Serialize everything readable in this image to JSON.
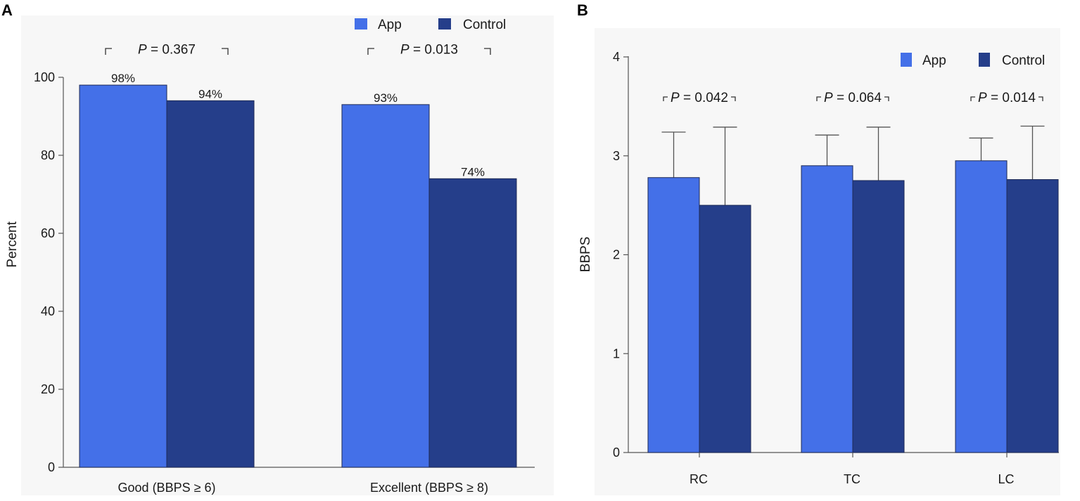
{
  "colors": {
    "app": "#4470e8",
    "control": "#253e8a",
    "panel_bg": "#f7f7f7",
    "axis": "#555555"
  },
  "chart_data": [
    {
      "panel": "A",
      "type": "bar",
      "ylabel": "Percent",
      "xlabel": "",
      "ylim": [
        0,
        100
      ],
      "yticks": [
        "0",
        "20",
        "40",
        "60",
        "80",
        "100"
      ],
      "categories": [
        "Good (BBPS ≥ 6)",
        "Excellent (BBPS ≥ 8)"
      ],
      "series": [
        {
          "name": "App",
          "values": [
            98,
            93
          ],
          "labels": [
            "98%",
            "93%"
          ]
        },
        {
          "name": "Control",
          "values": [
            94,
            74
          ],
          "labels": [
            "94%",
            "74%"
          ]
        }
      ],
      "p_prefix": "P",
      "p_values": [
        "= 0.367",
        "= 0.013"
      ],
      "legend": "top-right"
    },
    {
      "panel": "B",
      "type": "bar",
      "ylabel": "BBPS",
      "xlabel": "",
      "ylim": [
        0,
        4
      ],
      "yticks": [
        "0",
        "1",
        "2",
        "3",
        "4"
      ],
      "categories": [
        "RC",
        "TC",
        "LC"
      ],
      "series": [
        {
          "name": "App",
          "values": [
            2.78,
            2.9,
            2.95
          ],
          "error_upper": [
            3.24,
            3.21,
            3.18
          ]
        },
        {
          "name": "Control",
          "values": [
            2.5,
            2.75,
            2.76
          ],
          "error_upper": [
            3.29,
            3.29,
            3.3
          ]
        }
      ],
      "p_prefix": "P",
      "p_values": [
        "= 0.042",
        "= 0.064",
        "= 0.014"
      ],
      "legend": "top-right"
    }
  ]
}
